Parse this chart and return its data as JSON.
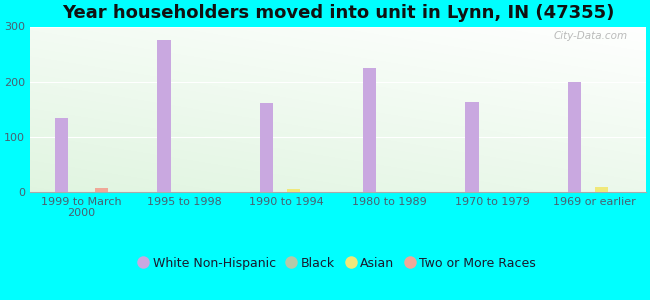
{
  "title": "Year householders moved into unit in Lynn, IN (47355)",
  "categories": [
    "1999 to March\n2000",
    "1995 to 1998",
    "1990 to 1994",
    "1980 to 1989",
    "1970 to 1979",
    "1969 or earlier"
  ],
  "series": {
    "White Non-Hispanic": [
      135,
      275,
      162,
      225,
      163,
      200
    ],
    "Black": [
      0,
      0,
      0,
      0,
      0,
      0
    ],
    "Asian": [
      0,
      0,
      5,
      0,
      0,
      9
    ],
    "Two or More Races": [
      7,
      0,
      0,
      0,
      0,
      0
    ]
  },
  "colors": {
    "White Non-Hispanic": "#c9a8e0",
    "Black": "#b5c9a8",
    "Asian": "#f0e87a",
    "Two or More Races": "#f0a898"
  },
  "ylim": [
    0,
    300
  ],
  "yticks": [
    0,
    100,
    200,
    300
  ],
  "background_color": "#00ffff",
  "bar_width": 0.13,
  "title_fontsize": 13,
  "tick_fontsize": 8,
  "legend_fontsize": 9,
  "watermark": "City-Data.com"
}
